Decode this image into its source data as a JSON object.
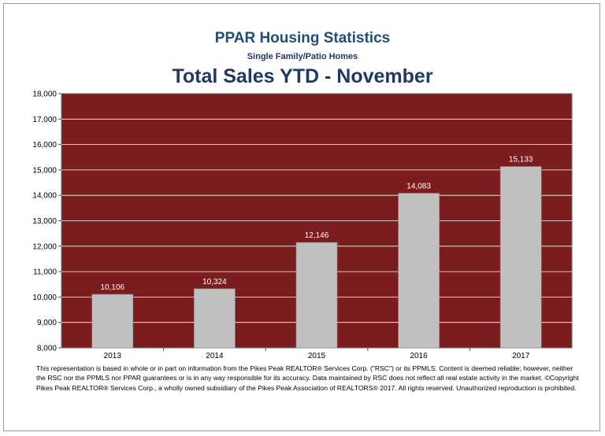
{
  "header": {
    "title": "PPAR Housing Statistics",
    "subtitle": "Single Family/Patio Homes",
    "chart_title": "Total Sales YTD - November"
  },
  "colors": {
    "plot_background": "#7b1c1f",
    "bar_fill": "#c0c0c0",
    "title_blue": "#1f4e79",
    "gridline": "#ffffff"
  },
  "chart_data": {
    "type": "bar",
    "title": "Total Sales YTD - November",
    "subtitle": "Single Family/Patio Homes",
    "categories": [
      "2013",
      "2014",
      "2015",
      "2016",
      "2017"
    ],
    "values": [
      10106,
      10324,
      12146,
      14083,
      15133
    ],
    "value_labels": [
      "10,106",
      "10,324",
      "12,146",
      "14,083",
      "15,133"
    ],
    "ylim": [
      8000,
      18000
    ],
    "yticks": [
      8000,
      9000,
      10000,
      11000,
      12000,
      13000,
      14000,
      15000,
      16000,
      17000,
      18000
    ],
    "ytick_labels": [
      "8,000",
      "9,000",
      "10,000",
      "11,000",
      "12,000",
      "13,000",
      "14,000",
      "15,000",
      "16,000",
      "17,000",
      "18,000"
    ],
    "grid": true,
    "legend": "none"
  },
  "footer": {
    "disclaimer": "This representation is based in whole or in part on information from the Pikes Peak REALTOR® Services Corp. (\"RSC\") or its PPMLS.  Content is deemed reliable; however, neither the RSC nor the PPMLS nor PPAR guarantees or is in any way responsible for its accuracy.  Data maintained by RSC does not reflect all real estate activity in the market.  ©Copyright Pikes Peak REALTOR® Services Corp., a wholly owned subsidiary of the Pikes Peak Association of REALTORS® 2017.  All rights reserved.  Unauthorized reproduction is prohibited."
  }
}
